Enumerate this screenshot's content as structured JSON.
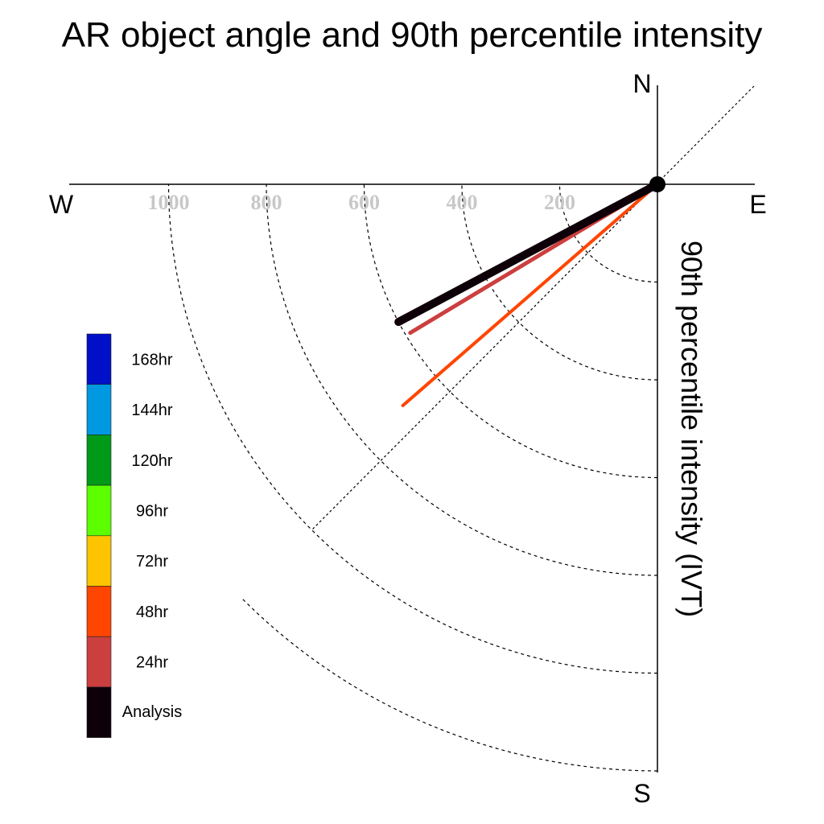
{
  "chart_data": {
    "type": "polar-vector",
    "title": "AR object angle and 90th percentile intensity",
    "radial_label": "90th percentile intensity (IVT)",
    "compass": {
      "north": "N",
      "south": "S",
      "east": "E",
      "west": "W"
    },
    "radial_ticks": [
      200,
      400,
      600,
      800,
      1000
    ],
    "radial_tick_labels": [
      "200",
      "400",
      "600",
      "800",
      "1000"
    ],
    "radial_max": 1200,
    "grid": true,
    "vectors": [
      {
        "name": "48hr",
        "direction_deg": 229,
        "intensity": 690,
        "color": "#ff4500"
      },
      {
        "name": "24hr",
        "direction_deg": 239,
        "intensity": 590,
        "color": "#cc3f3f"
      },
      {
        "name": "Analysis",
        "direction_deg": 242,
        "intensity": 600,
        "color": "#0e0008"
      }
    ],
    "legend": {
      "placement": "left",
      "items": [
        {
          "label": "168hr",
          "color": "#0010c8"
        },
        {
          "label": "144hr",
          "color": "#0098e0"
        },
        {
          "label": "120hr",
          "color": "#009a18"
        },
        {
          "label": "96hr",
          "color": "#5cff00"
        },
        {
          "label": "72hr",
          "color": "#ffc400"
        },
        {
          "label": "48hr",
          "color": "#ff4500"
        },
        {
          "label": "24hr",
          "color": "#cc3f3f"
        },
        {
          "label": "Analysis",
          "color": "#0e0008"
        }
      ]
    }
  }
}
